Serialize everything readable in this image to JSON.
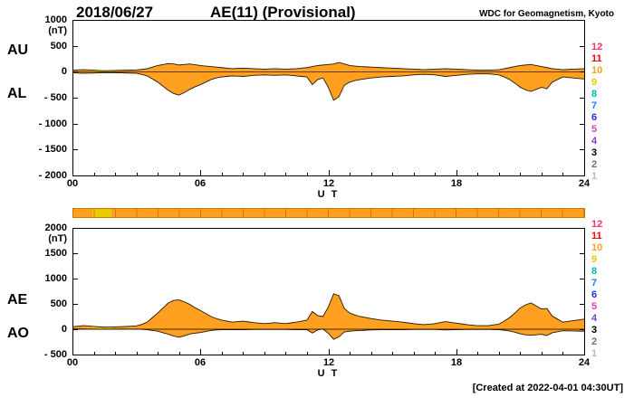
{
  "header": {
    "date": "2018/06/27",
    "title": "AE(11) (Provisional)",
    "source": "WDC for Geomagnetism, Kyoto"
  },
  "footer": {
    "created": "[Created at 2022-04-01 04:30UT]"
  },
  "colors": {
    "trace_fill": "#ffa020",
    "trace_outline": "#2b1600",
    "axis": "#000000",
    "bar_border": "#c87800"
  },
  "station_legend": {
    "counts": [
      12,
      11,
      10,
      9,
      8,
      7,
      6,
      5,
      4,
      3,
      2,
      1
    ],
    "colors": {
      "12": "#ff3060",
      "11": "#ff0000",
      "10": "#ffa020",
      "9": "#e8cc00",
      "8": "#00b8b8",
      "7": "#2878ff",
      "6": "#2030e0",
      "5": "#e040c0",
      "4": "#8040d0",
      "3": "#000000",
      "2": "#707070",
      "1": "#b8b8b8"
    }
  },
  "station_bar": {
    "segments": [
      {
        "from": 0,
        "to": 0.9,
        "count": 10
      },
      {
        "from": 0.9,
        "to": 1.8,
        "count": 9
      },
      {
        "from": 1.8,
        "to": 24,
        "count": 10
      }
    ]
  },
  "panels": [
    {
      "id": "upper",
      "left_labels": [
        "AU",
        "AL"
      ],
      "unit": "(nT)",
      "ylim": [
        -2000,
        1000
      ],
      "yticks": [
        1000,
        500,
        0,
        -500,
        -1000,
        -1500,
        -2000
      ],
      "xticks": [
        {
          "t": 0,
          "label": "00"
        },
        {
          "t": 6,
          "label": "06"
        },
        {
          "t": 12,
          "label": "12"
        },
        {
          "t": 18,
          "label": "18"
        },
        {
          "t": 24,
          "label": "24"
        }
      ],
      "xlabel": "U T"
    },
    {
      "id": "lower",
      "left_labels": [
        "AE",
        "AO"
      ],
      "unit": "(nT)",
      "ylim": [
        -500,
        2000
      ],
      "yticks": [
        2000,
        1500,
        1000,
        500,
        0,
        -500
      ],
      "xticks": [
        {
          "t": 0,
          "label": "00"
        },
        {
          "t": 6,
          "label": "06"
        },
        {
          "t": 12,
          "label": "12"
        },
        {
          "t": 18,
          "label": "18"
        },
        {
          "t": 24,
          "label": "24"
        }
      ],
      "xlabel": "U T"
    }
  ],
  "chart_data": {
    "type": "area",
    "title": "AE(11) (Provisional) 2018/06/27",
    "xlabel": "UT (hours)",
    "ylabel": "nT",
    "x_range": [
      0,
      24
    ],
    "x_hours_step": 0.25,
    "grid": false,
    "series": [
      {
        "name": "AU",
        "panel": "upper",
        "values": [
          30,
          35,
          40,
          35,
          30,
          25,
          20,
          22,
          25,
          28,
          30,
          32,
          35,
          45,
          60,
          90,
          120,
          140,
          160,
          150,
          130,
          140,
          150,
          135,
          120,
          110,
          100,
          90,
          80,
          70,
          60,
          65,
          70,
          65,
          60,
          55,
          50,
          55,
          60,
          55,
          50,
          55,
          60,
          70,
          80,
          100,
          120,
          130,
          140,
          150,
          180,
          150,
          120,
          110,
          100,
          95,
          90,
          85,
          80,
          75,
          70,
          65,
          60,
          55,
          50,
          45,
          40,
          45,
          50,
          55,
          60,
          55,
          50,
          45,
          40,
          35,
          30,
          30,
          30,
          35,
          40,
          60,
          80,
          100,
          120,
          130,
          140,
          120,
          100,
          80,
          60,
          50,
          40,
          45,
          50,
          55,
          60
        ]
      },
      {
        "name": "AL",
        "panel": "upper",
        "values": [
          -20,
          -25,
          -30,
          -28,
          -25,
          -22,
          -20,
          -20,
          -20,
          -22,
          -25,
          -28,
          -30,
          -50,
          -80,
          -140,
          -200,
          -280,
          -360,
          -420,
          -450,
          -400,
          -340,
          -290,
          -250,
          -200,
          -150,
          -120,
          -100,
          -90,
          -80,
          -85,
          -90,
          -80,
          -70,
          -65,
          -60,
          -65,
          -70,
          -65,
          -60,
          -70,
          -80,
          -90,
          -100,
          -250,
          -150,
          -120,
          -300,
          -550,
          -480,
          -260,
          -200,
          -170,
          -150,
          -135,
          -120,
          -110,
          -100,
          -95,
          -90,
          -85,
          -80,
          -70,
          -60,
          -55,
          -50,
          -55,
          -60,
          -75,
          -90,
          -80,
          -70,
          -60,
          -50,
          -45,
          -40,
          -40,
          -40,
          -50,
          -60,
          -100,
          -150,
          -220,
          -300,
          -350,
          -380,
          -340,
          -300,
          -330,
          -200,
          -150,
          -100,
          -110,
          -120,
          -130,
          -140
        ]
      },
      {
        "name": "AE",
        "panel": "lower",
        "values": [
          50,
          60,
          70,
          63,
          55,
          47,
          40,
          42,
          45,
          50,
          55,
          60,
          65,
          95,
          140,
          230,
          320,
          420,
          520,
          570,
          580,
          540,
          490,
          425,
          370,
          310,
          250,
          210,
          180,
          160,
          140,
          150,
          160,
          145,
          130,
          120,
          110,
          120,
          130,
          120,
          110,
          125,
          140,
          160,
          180,
          350,
          270,
          250,
          440,
          700,
          660,
          410,
          320,
          280,
          250,
          230,
          210,
          195,
          180,
          170,
          160,
          150,
          140,
          125,
          110,
          100,
          90,
          100,
          110,
          130,
          150,
          135,
          120,
          105,
          90,
          80,
          70,
          70,
          70,
          85,
          100,
          160,
          230,
          320,
          420,
          480,
          520,
          460,
          400,
          410,
          260,
          200,
          140,
          155,
          170,
          185,
          200
        ]
      },
      {
        "name": "AO",
        "panel": "lower",
        "values": [
          5,
          5,
          5,
          4,
          3,
          2,
          0,
          1,
          3,
          3,
          3,
          2,
          3,
          -3,
          -10,
          -25,
          -40,
          -70,
          -100,
          -135,
          -160,
          -130,
          -95,
          -78,
          -65,
          -45,
          -25,
          -15,
          -10,
          -10,
          -10,
          -10,
          -10,
          -8,
          -5,
          -5,
          -5,
          -5,
          -5,
          -5,
          -5,
          -8,
          -10,
          -10,
          -10,
          -75,
          -15,
          5,
          -80,
          -200,
          -150,
          -55,
          -40,
          -30,
          -25,
          -20,
          -15,
          -13,
          -10,
          -10,
          -10,
          -10,
          -10,
          -8,
          -5,
          -5,
          -5,
          -5,
          -5,
          -10,
          -15,
          -13,
          -10,
          -8,
          -5,
          -5,
          -5,
          -5,
          -5,
          -8,
          -10,
          -20,
          -35,
          -60,
          -90,
          -110,
          -120,
          -110,
          -100,
          -125,
          -70,
          -50,
          -30,
          -33,
          -35,
          -38,
          -40
        ]
      }
    ],
    "station_count_by_segment": [
      {
        "from": 0,
        "to": 0.9,
        "count": 10
      },
      {
        "from": 0.9,
        "to": 1.8,
        "count": 9
      },
      {
        "from": 1.8,
        "to": 24,
        "count": 10
      }
    ]
  }
}
